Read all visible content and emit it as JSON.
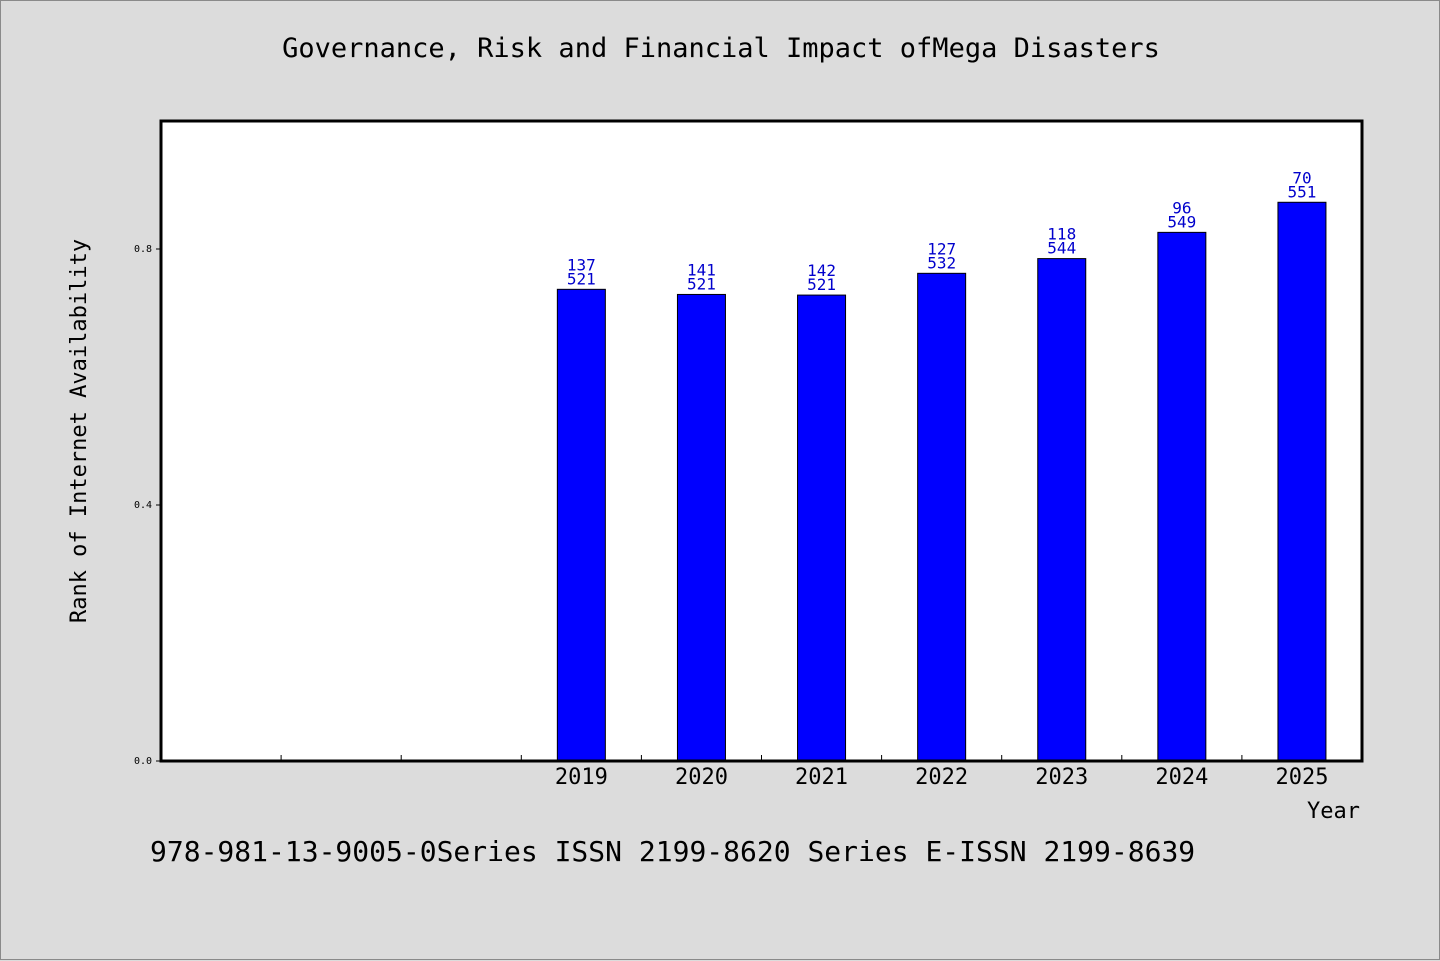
{
  "chart_data": {
    "type": "bar",
    "title": "Governance, Risk and Financial Impact ofMega Disasters",
    "xlabel": "Year",
    "ylabel": "Rank of Internet Availability",
    "ylim": [
      0,
      1.0
    ],
    "yticks": [
      0.0,
      0.4,
      0.8
    ],
    "ytick_labels": [
      "0.0",
      "0.4",
      "0.8"
    ],
    "x_slots": 10,
    "categories": [
      "2019",
      "2020",
      "2021",
      "2022",
      "2023",
      "2024",
      "2025"
    ],
    "values": [
      0.737,
      0.729,
      0.728,
      0.762,
      0.785,
      0.826,
      0.873
    ],
    "label_top": [
      "137",
      "141",
      "142",
      "127",
      "118",
      "96",
      "70"
    ],
    "label_bottom": [
      "521",
      "521",
      "521",
      "532",
      "544",
      "549",
      "551"
    ],
    "bar_color": "#0000ff",
    "label_color": "#0000cc",
    "grid": false,
    "legend": "none"
  },
  "footer": {
    "text": "978-981-13-9005-0Series ISSN 2199-8620 Series E-ISSN 2199-8639"
  }
}
